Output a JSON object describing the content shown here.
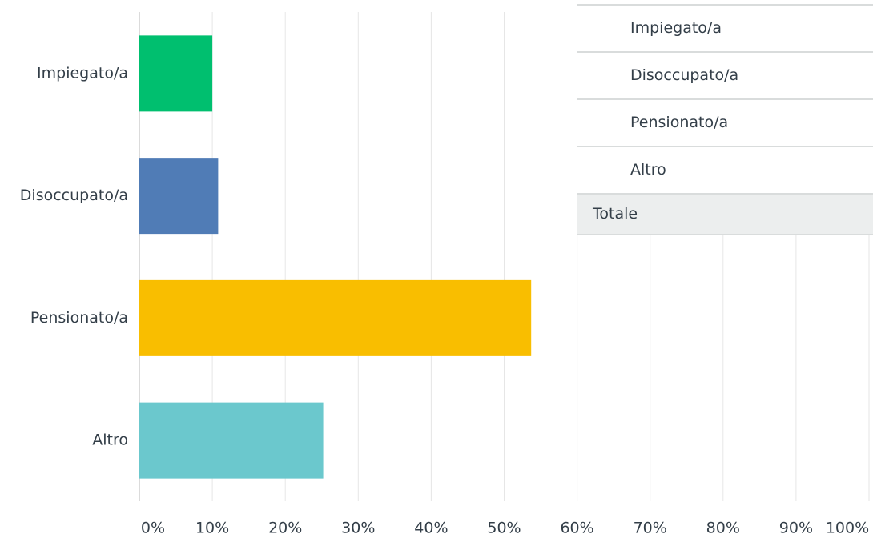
{
  "chart_data": {
    "type": "bar",
    "orientation": "horizontal",
    "categories": [
      "Impiegato/a",
      "Disoccupato/a",
      "Pensionato/a",
      "Altro"
    ],
    "values": [
      10,
      10.8,
      53.7,
      25.2
    ],
    "colors": [
      "#00bf6f",
      "#507cb6",
      "#f9be00",
      "#6bc8cd"
    ],
    "xlim": [
      0,
      100
    ],
    "xticks": [
      {
        "value": 0,
        "label": "0%"
      },
      {
        "value": 10,
        "label": "10%"
      },
      {
        "value": 20,
        "label": "20%"
      },
      {
        "value": 30,
        "label": "30%"
      },
      {
        "value": 40,
        "label": "40%"
      },
      {
        "value": 50,
        "label": "50%"
      },
      {
        "value": 60,
        "label": "60%"
      },
      {
        "value": 70,
        "label": "70%"
      },
      {
        "value": 80,
        "label": "80%"
      },
      {
        "value": 90,
        "label": "90%"
      },
      {
        "value": 100,
        "label": "100%"
      }
    ],
    "grid": true
  },
  "table": {
    "rows": [
      "Impiegato/a",
      "Disoccupato/a",
      "Pensionato/a",
      "Altro"
    ],
    "total": "Totale"
  }
}
